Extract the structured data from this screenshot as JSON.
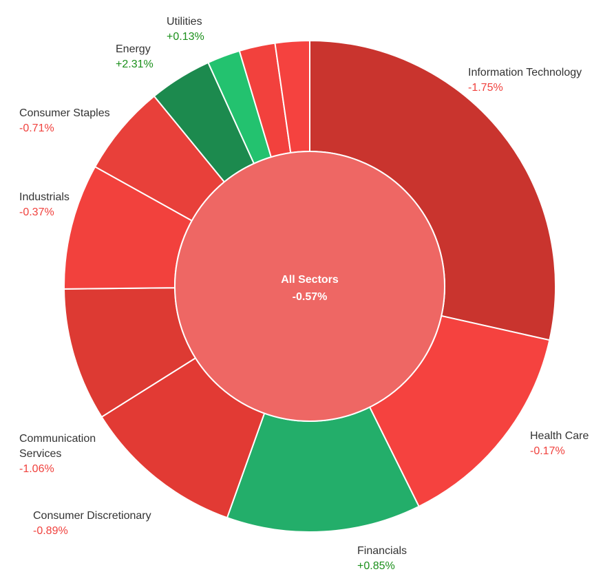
{
  "chart_data": {
    "type": "sunburst",
    "title": "",
    "center": {
      "label": "All Sectors",
      "change": "-0.57%",
      "color": "#ee6764"
    },
    "segments": [
      {
        "name": "Information Technology",
        "change": "-1.75%",
        "weight": 29.0,
        "color": "#c9342e",
        "labeled": true
      },
      {
        "name": "Health Care",
        "change": "-0.17%",
        "weight": 14.4,
        "color": "#f5423f",
        "labeled": true
      },
      {
        "name": "Financials",
        "change": "+0.85%",
        "weight": 13.0,
        "color": "#23ae6a",
        "labeled": true
      },
      {
        "name": "Consumer Discretionary",
        "change": "-0.89%",
        "weight": 10.8,
        "color": "#e23a34",
        "labeled": true
      },
      {
        "name": "Communication Services",
        "change": "-1.06%",
        "weight": 8.9,
        "color": "#dd3a33",
        "labeled": true
      },
      {
        "name": "Industrials",
        "change": "-0.37%",
        "weight": 8.4,
        "color": "#f2413d",
        "labeled": true
      },
      {
        "name": "Consumer Staples",
        "change": "-0.71%",
        "weight": 6.1,
        "color": "#e8403a",
        "labeled": true
      },
      {
        "name": "Energy",
        "change": "+2.31%",
        "weight": 4.2,
        "color": "#1c8a4e",
        "labeled": true
      },
      {
        "name": "Utilities",
        "change": "+0.13%",
        "weight": 2.2,
        "color": "#23c26f",
        "labeled": true
      },
      {
        "name": "",
        "change": "",
        "weight": 2.4,
        "color": "#f2413d",
        "labeled": false
      },
      {
        "name": "",
        "change": "",
        "weight": 2.3,
        "color": "#f5423f",
        "labeled": false
      }
    ],
    "positive_color": "#1a8f1a",
    "negative_color": "#f0413d"
  }
}
